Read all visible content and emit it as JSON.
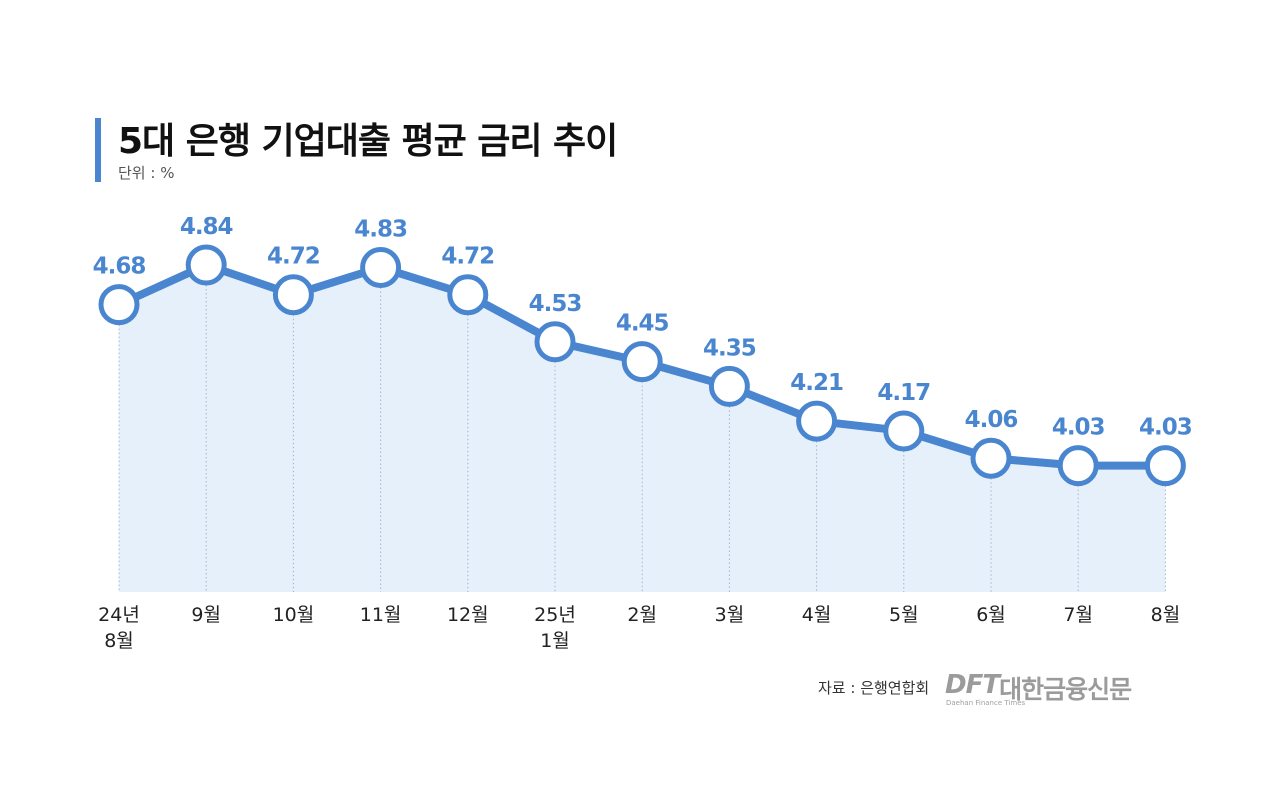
{
  "header": {
    "title": "5대 은행 기업대출 평균 금리 추이",
    "unit": "단위 : %"
  },
  "footer": {
    "source": "자료 : 은행연합회",
    "logo_dft": "DFT",
    "logo_korean": "대한금융신문",
    "logo_english": "Daehan Finance Times"
  },
  "colors": {
    "accent": "#4a86d0",
    "area_fill": "#e6f0fb",
    "marker_fill": "#ffffff",
    "title_text": "#111111",
    "logo_gray": "#9b9b9b"
  },
  "chart_data": {
    "type": "line",
    "title": "5대 은행 기업대출 평균 금리 추이",
    "xlabel": "",
    "ylabel": "",
    "unit": "%",
    "categories": [
      [
        "24년",
        "8월"
      ],
      [
        "9월"
      ],
      [
        "10월"
      ],
      [
        "11월"
      ],
      [
        "12월"
      ],
      [
        "25년",
        "1월"
      ],
      [
        "2월"
      ],
      [
        "3월"
      ],
      [
        "4월"
      ],
      [
        "5월"
      ],
      [
        "6월"
      ],
      [
        "7월"
      ],
      [
        "8월"
      ]
    ],
    "series": [
      {
        "values": [
          4.68,
          4.84,
          4.72,
          4.83,
          4.72,
          4.53,
          4.45,
          4.35,
          4.21,
          4.17,
          4.06,
          4.03,
          4.03
        ],
        "data_labels": [
          "4.68",
          "4.84",
          "4.72",
          "4.83",
          "4.72",
          "4.53",
          "4.45",
          "4.35",
          "4.21",
          "4.17",
          "4.06",
          "4.03",
          "4.03"
        ]
      }
    ],
    "ylim": [
      3.52,
      4.84
    ],
    "grid": "vertical dotted drop lines",
    "area_fill": true,
    "markers": "hollow circles",
    "legend": "none"
  }
}
